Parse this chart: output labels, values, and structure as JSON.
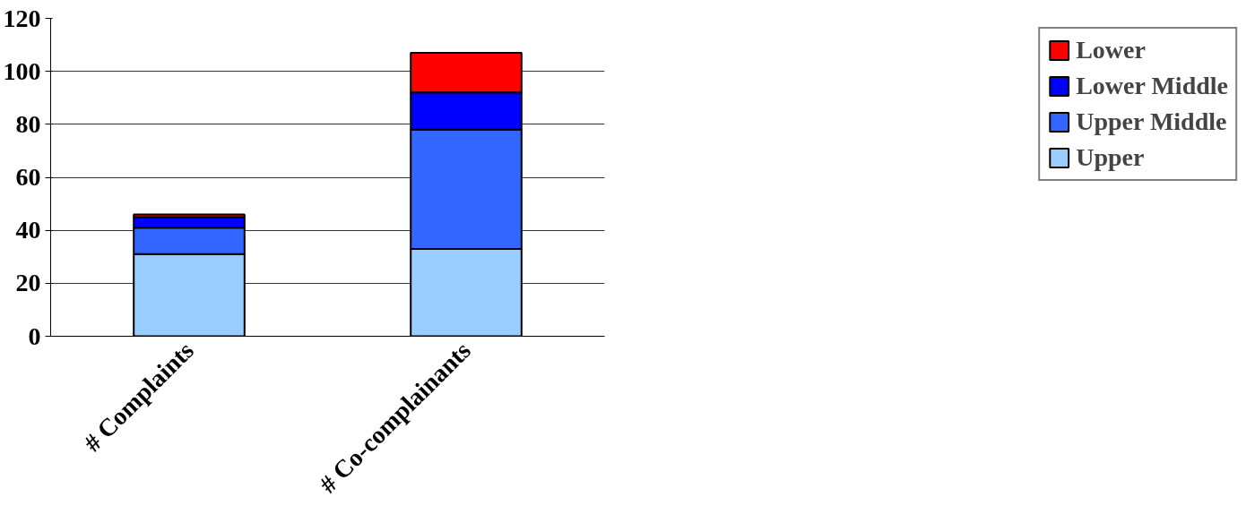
{
  "chart_data": {
    "type": "bar",
    "stacked": true,
    "categories": [
      "# Complaints",
      "# Co-complainants"
    ],
    "series": [
      {
        "name": "Upper",
        "color": "#99ccff",
        "values": [
          31,
          33
        ]
      },
      {
        "name": "Upper Middle",
        "color": "#3366ff",
        "values": [
          10,
          45
        ]
      },
      {
        "name": "Lower Middle",
        "color": "#0000ff",
        "values": [
          4,
          14
        ]
      },
      {
        "name": "Lower",
        "color": "#ff0000",
        "values": [
          1,
          15
        ]
      }
    ],
    "ylim": [
      0,
      120
    ],
    "yticks": [
      0,
      20,
      40,
      60,
      80,
      100,
      120
    ],
    "grid": "y",
    "legend": "right"
  }
}
